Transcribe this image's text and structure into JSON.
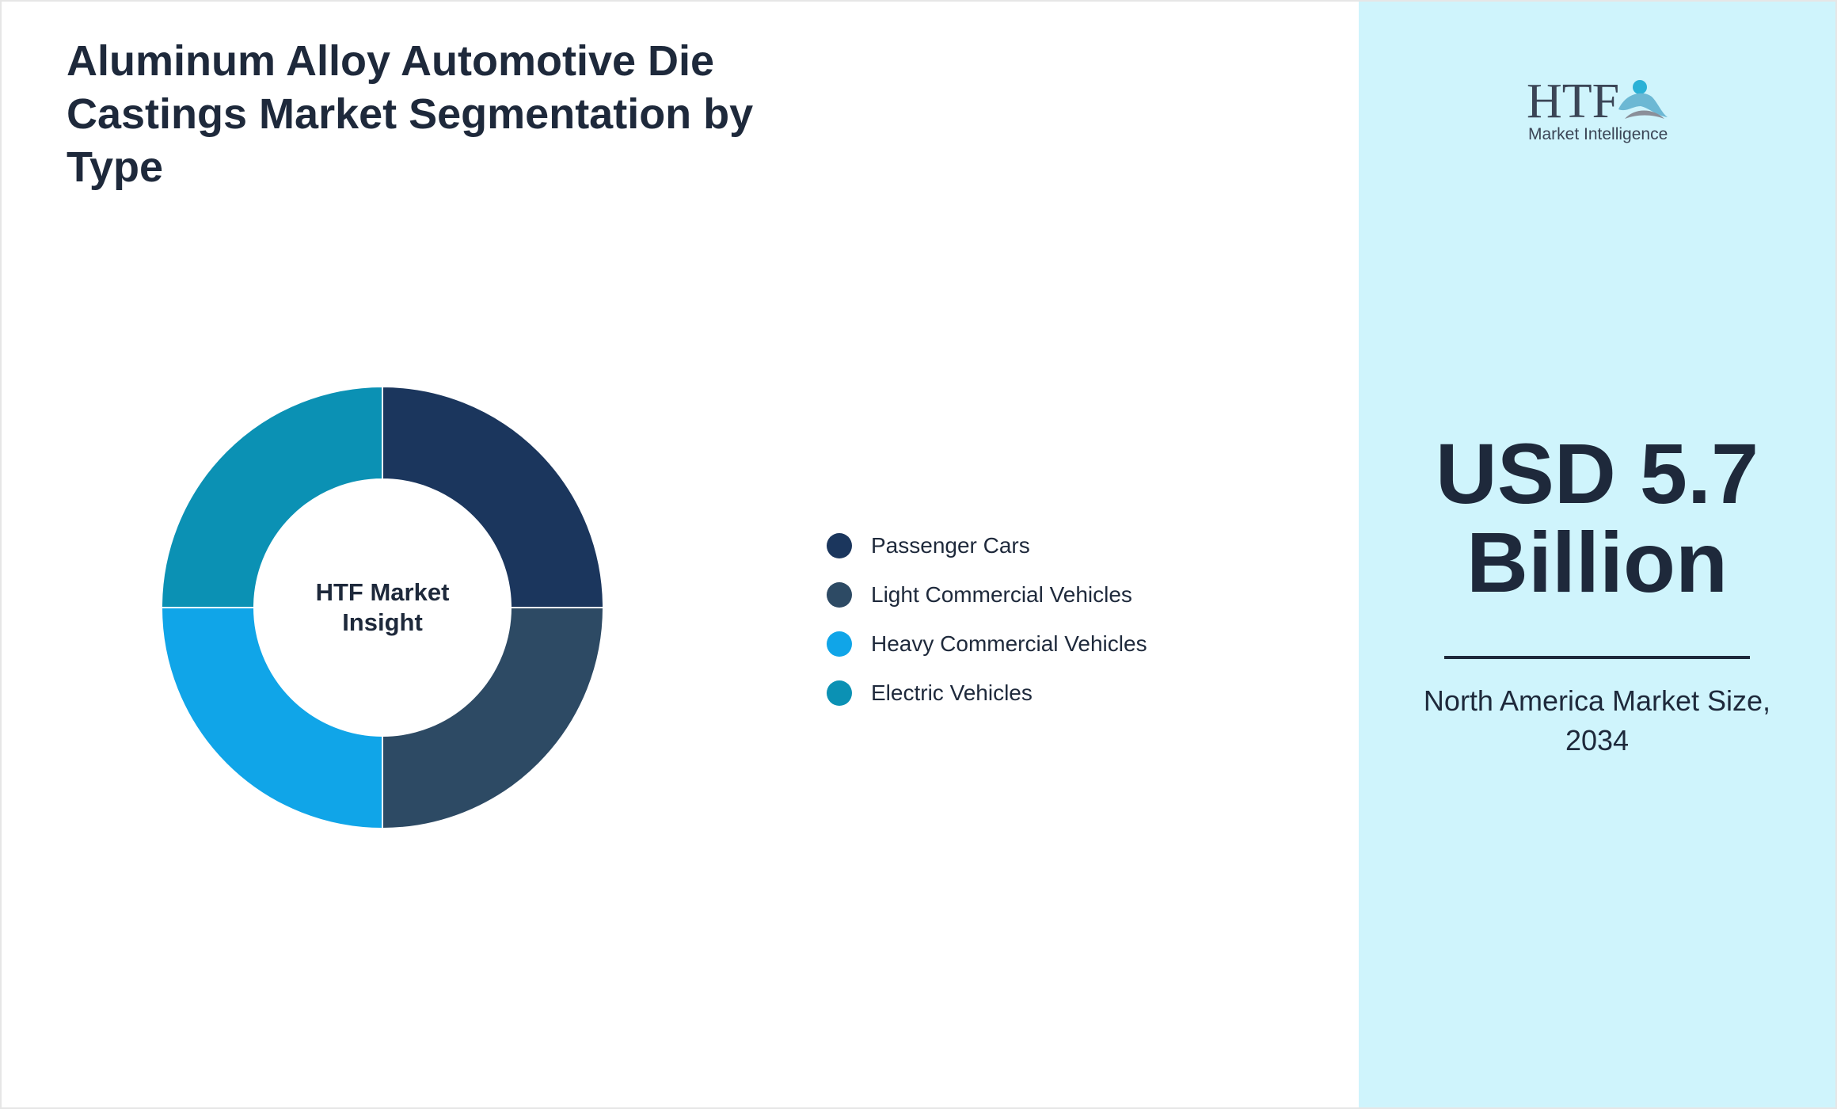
{
  "chart_data": {
    "type": "pie",
    "variant": "donut",
    "title": "Aluminum Alloy Automotive Die Castings Market Segmentation by Type",
    "center_label": "HTF Market Insight",
    "categories": [
      "Passenger Cars",
      "Light Commercial Vehicles",
      "Heavy Commercial Vehicles",
      "Electric Vehicles"
    ],
    "values": [
      25,
      25,
      25,
      25
    ],
    "colors": [
      "#1b365d",
      "#2d4a64",
      "#10a5e8",
      "#0b91b4"
    ],
    "legend_position": "right"
  },
  "side_panel": {
    "logo_text": "HTF",
    "logo_subtext": "Market Intelligence",
    "headline_value": "USD 5.7 Billion",
    "headline_caption": "North America Market Size, 2034"
  }
}
